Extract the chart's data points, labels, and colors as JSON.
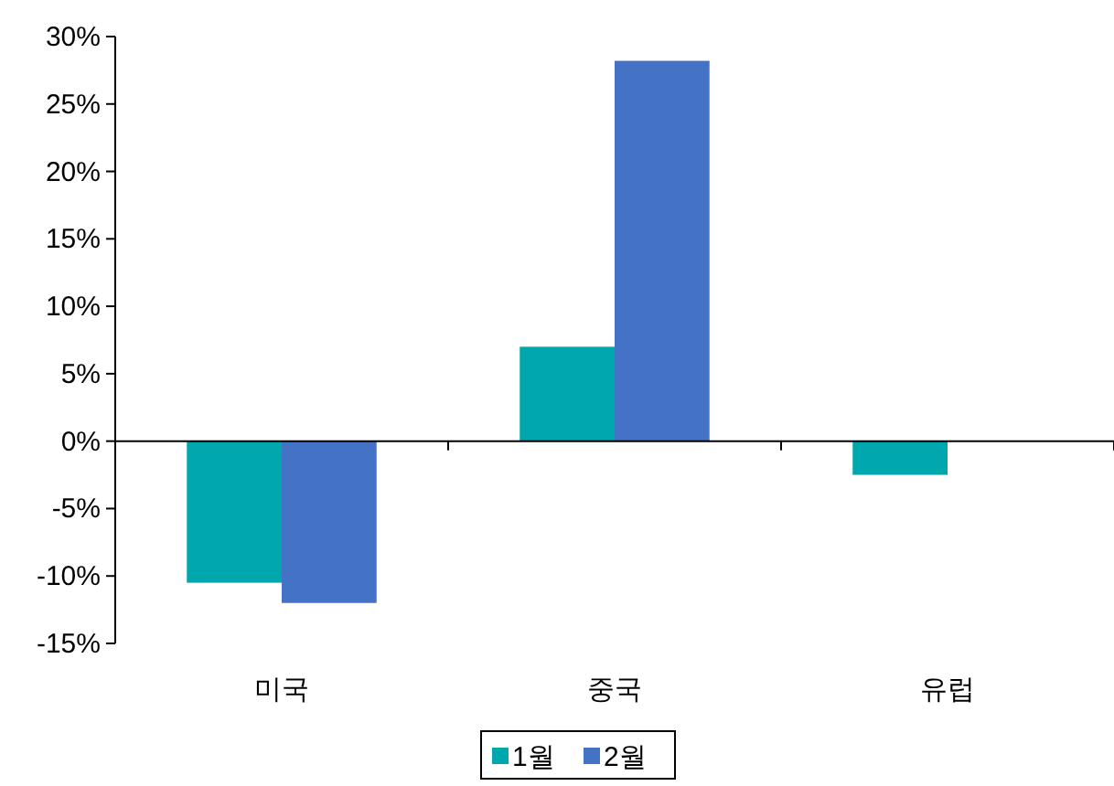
{
  "chart_data": {
    "type": "bar",
    "categories": [
      "미국",
      "중국",
      "유럽"
    ],
    "series": [
      {
        "name": "1월",
        "color": "#00a8ae",
        "values": [
          -10.5,
          7,
          -2.5
        ]
      },
      {
        "name": "2월",
        "color": "#4472c4",
        "values": [
          -12,
          28.2,
          null
        ]
      }
    ],
    "ylim": [
      -15,
      30
    ],
    "yticks": [
      {
        "value": -15,
        "label": "-15%"
      },
      {
        "value": -10,
        "label": "-10%"
      },
      {
        "value": -5,
        "label": "-5%"
      },
      {
        "value": 0,
        "label": "0%"
      },
      {
        "value": 5,
        "label": "5%"
      },
      {
        "value": 10,
        "label": "10%"
      },
      {
        "value": 15,
        "label": "15%"
      },
      {
        "value": 20,
        "label": "20%"
      },
      {
        "value": 25,
        "label": "25%"
      },
      {
        "value": 30,
        "label": "30%"
      }
    ],
    "legend": "bottom"
  }
}
